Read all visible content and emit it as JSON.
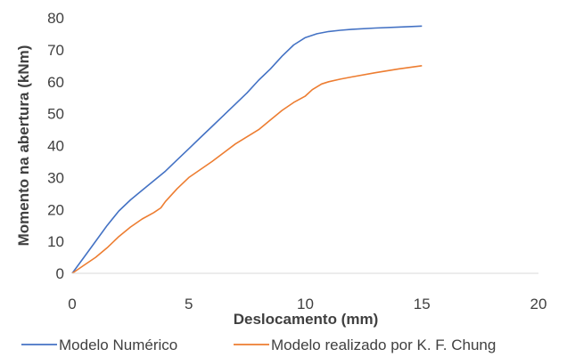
{
  "chart_data": {
    "type": "line",
    "xlabel": "Deslocamento (mm)",
    "ylabel": "Momento na abertura (kNm)",
    "xlim": [
      0,
      20
    ],
    "ylim": [
      0,
      80
    ],
    "x_ticks": [
      0,
      5,
      10,
      15,
      20
    ],
    "y_ticks": [
      0,
      10,
      20,
      30,
      40,
      50,
      60,
      70,
      80
    ],
    "grid": false,
    "legend_position": "bottom",
    "series": [
      {
        "name": "Modelo Numérico",
        "color": "#4472C4",
        "x": [
          0,
          0.5,
          1,
          1.5,
          2,
          2.5,
          3,
          3.5,
          4,
          4.5,
          5,
          5.5,
          6,
          6.5,
          7,
          7.5,
          8,
          8.5,
          9,
          9.5,
          10,
          10.5,
          11,
          11.5,
          12,
          13,
          14,
          15
        ],
        "y": [
          0,
          5,
          10,
          15,
          19.5,
          23,
          26,
          29,
          32,
          35.5,
          39,
          42.5,
          46,
          49.5,
          53,
          56.5,
          60.5,
          64,
          68,
          71.5,
          73.8,
          75,
          75.7,
          76.1,
          76.4,
          76.8,
          77.1,
          77.4
        ]
      },
      {
        "name": "Modelo realizado por K. F. Chung",
        "color": "#ED7D31",
        "x": [
          0,
          0.5,
          1,
          1.5,
          2,
          2.5,
          3,
          3.5,
          3.8,
          4,
          4.5,
          5,
          6,
          7,
          8,
          8.5,
          9,
          9.5,
          10,
          10.3,
          10.7,
          11,
          11.5,
          12,
          13,
          14,
          15
        ],
        "y": [
          0,
          2.5,
          5,
          8,
          11.5,
          14.5,
          17,
          19,
          20.5,
          22.5,
          26.5,
          30,
          35,
          40.5,
          45,
          48,
          51,
          53.5,
          55.5,
          57.5,
          59.3,
          60,
          60.8,
          61.5,
          62.8,
          64,
          65
        ]
      }
    ]
  }
}
